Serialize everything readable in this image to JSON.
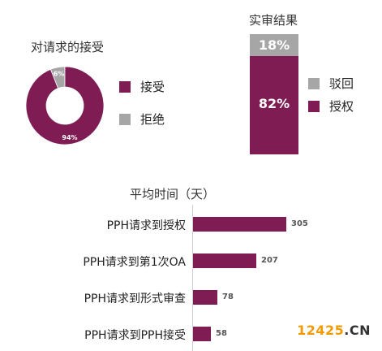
{
  "colors": {
    "primary": "#7e1c53",
    "secondary": "#a6a6a6",
    "watermark_accent": "#f29b00"
  },
  "chart_data": [
    {
      "type": "pie",
      "variant": "donut",
      "title": "对请求的接受",
      "slices": [
        {
          "name": "接受",
          "value": 94,
          "label": "94%"
        },
        {
          "name": "拒绝",
          "value": 6,
          "label": "6%"
        }
      ],
      "legend_placement": "right"
    },
    {
      "type": "bar",
      "variant": "stacked-100",
      "title": "实审结果",
      "categories": [
        ""
      ],
      "series": [
        {
          "name": "驳回",
          "values": [
            18
          ],
          "label": "18%"
        },
        {
          "name": "授权",
          "values": [
            82
          ],
          "label": "82%"
        }
      ],
      "ylim": [
        0,
        100
      ],
      "legend_placement": "right"
    },
    {
      "type": "bar",
      "orientation": "horizontal",
      "title": "平均时间（天）",
      "categories": [
        "PPH请求到授权",
        "PPH请求到第1次OA",
        "PPH请求到形式审查",
        "PPH请求到PPH接受"
      ],
      "values": [
        305,
        207,
        78,
        58
      ],
      "value_labels": [
        "305",
        "207",
        "78",
        "58"
      ],
      "xlim": [
        0,
        370
      ],
      "grid": false
    }
  ],
  "watermark": {
    "number": "12425",
    "dot": ".",
    "suffix": "CN"
  }
}
